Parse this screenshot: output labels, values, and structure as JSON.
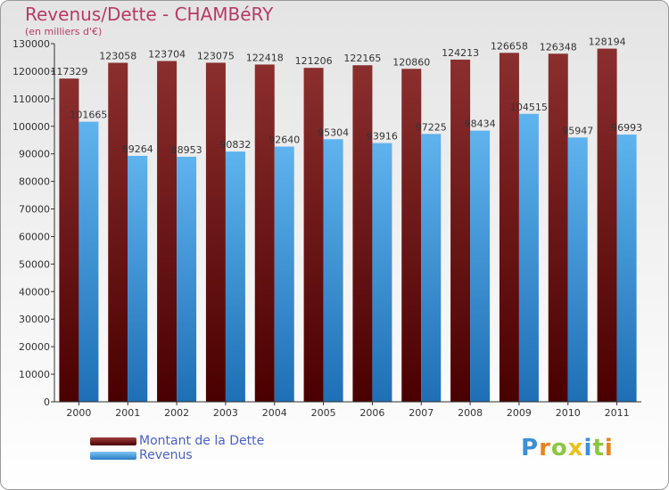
{
  "header": {
    "title": "Revenus/Dette - CHAMBéRY",
    "subtitle": "(en milliers d'€)"
  },
  "colors": {
    "title": "#b83a66",
    "debt_top": "#8b2e2e",
    "debt_bottom": "#4a0000",
    "revenue_top": "#5fb3ee",
    "revenue_bottom": "#1e6fb5",
    "legend_text": "#4a5fc8"
  },
  "chart_data": {
    "type": "bar",
    "categories": [
      "2000",
      "2001",
      "2002",
      "2003",
      "2004",
      "2005",
      "2006",
      "2007",
      "2008",
      "2009",
      "2010",
      "2011"
    ],
    "series": [
      {
        "name": "Montant de la Dette",
        "values": [
          117329,
          123058,
          123704,
          123075,
          122418,
          121206,
          122165,
          120860,
          124213,
          126658,
          126348,
          128194
        ]
      },
      {
        "name": "Revenus",
        "values": [
          101665,
          89264,
          88953,
          90832,
          92640,
          95304,
          93916,
          97225,
          98434,
          104515,
          95947,
          96993
        ]
      }
    ],
    "ylim": [
      0,
      130000
    ],
    "yticks": [
      0,
      10000,
      20000,
      30000,
      40000,
      50000,
      60000,
      70000,
      80000,
      90000,
      100000,
      110000,
      120000,
      130000
    ],
    "grid": false,
    "legend": "bottom-left",
    "data_labels": true
  },
  "legend": {
    "items": [
      {
        "label": "Montant de la Dette",
        "color": "#7a1a1a"
      },
      {
        "label": "Revenus",
        "color": "#4aa3e8"
      }
    ]
  },
  "logo": {
    "letters": [
      {
        "char": "P",
        "color": "#3a8fd8"
      },
      {
        "char": "r",
        "color": "#e8841e"
      },
      {
        "char": "o",
        "color": "#8cc63f"
      },
      {
        "char": "x",
        "color": "#e8c21e"
      },
      {
        "char": "i",
        "color": "#3a8fd8"
      },
      {
        "char": "t",
        "color": "#8cc63f"
      },
      {
        "char": "i",
        "color": "#e8841e"
      }
    ]
  }
}
